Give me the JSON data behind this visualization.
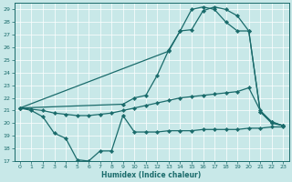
{
  "xlabel": "Humidex (Indice chaleur)",
  "bg_color": "#c8e8e8",
  "line_color": "#1a6b6b",
  "xlim": [
    -0.5,
    23.5
  ],
  "ylim": [
    17,
    29.5
  ],
  "xticks": [
    0,
    1,
    2,
    3,
    4,
    5,
    6,
    7,
    8,
    9,
    10,
    11,
    12,
    13,
    14,
    15,
    16,
    17,
    18,
    19,
    20,
    21,
    22,
    23
  ],
  "yticks": [
    17,
    18,
    19,
    20,
    21,
    22,
    23,
    24,
    25,
    26,
    27,
    28,
    29
  ],
  "line1_x": [
    0,
    1,
    2,
    3,
    4,
    5,
    6,
    7,
    8,
    9,
    10,
    11,
    12,
    13,
    14,
    15,
    16,
    17,
    18,
    19,
    20,
    21,
    22,
    23
  ],
  "line1_y": [
    21.2,
    21.0,
    20.5,
    19.2,
    18.8,
    17.1,
    17.0,
    17.8,
    17.8,
    20.6,
    19.3,
    19.3,
    19.3,
    19.4,
    19.4,
    19.4,
    19.5,
    19.5,
    19.5,
    19.5,
    19.6,
    19.6,
    19.7,
    19.7
  ],
  "line2_x": [
    0,
    1,
    2,
    3,
    4,
    5,
    6,
    7,
    8,
    9,
    10,
    11,
    12,
    13,
    14,
    15,
    16,
    17,
    18,
    19,
    20,
    21,
    22,
    23
  ],
  "line2_y": [
    21.2,
    21.1,
    21.0,
    20.8,
    20.7,
    20.6,
    20.6,
    20.7,
    20.8,
    21.0,
    21.2,
    21.4,
    21.6,
    21.8,
    22.0,
    22.1,
    22.2,
    22.3,
    22.4,
    22.5,
    22.8,
    21.0,
    20.1,
    19.8
  ],
  "line3_x": [
    0,
    9,
    10,
    11,
    12,
    13,
    14,
    15,
    16,
    17,
    18,
    19,
    20,
    21,
    22,
    23
  ],
  "line3_y": [
    21.2,
    21.5,
    22.0,
    22.2,
    23.8,
    25.8,
    27.3,
    29.0,
    29.2,
    29.0,
    28.0,
    27.3,
    27.3,
    20.9,
    20.1,
    19.8
  ],
  "line4_x": [
    0,
    13,
    14,
    15,
    16,
    17,
    18,
    19,
    20,
    21,
    22,
    23
  ],
  "line4_y": [
    21.2,
    25.7,
    27.3,
    27.4,
    28.9,
    29.2,
    29.0,
    28.5,
    27.3,
    20.9,
    20.0,
    19.8
  ]
}
